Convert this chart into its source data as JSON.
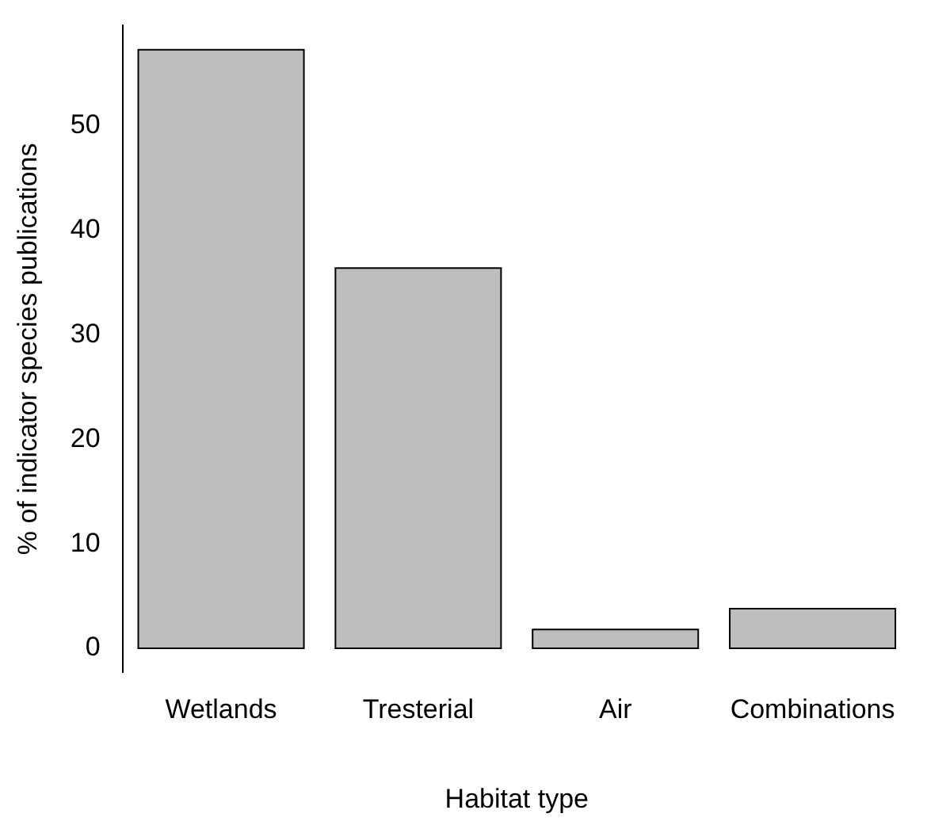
{
  "chart_data": {
    "type": "bar",
    "xlabel": "Habitat type",
    "ylabel": "% of indicator species publications",
    "categories": [
      "Wetlands",
      "Tresterial",
      "Air",
      "Combinations"
    ],
    "values": [
      57.3,
      36.4,
      1.8,
      3.8
    ],
    "color": "#bebebe",
    "ylim": [
      -2.3,
      59.6
    ],
    "yticks": [
      0,
      10,
      20,
      30,
      40,
      50
    ],
    "grid": false,
    "legend": false
  }
}
